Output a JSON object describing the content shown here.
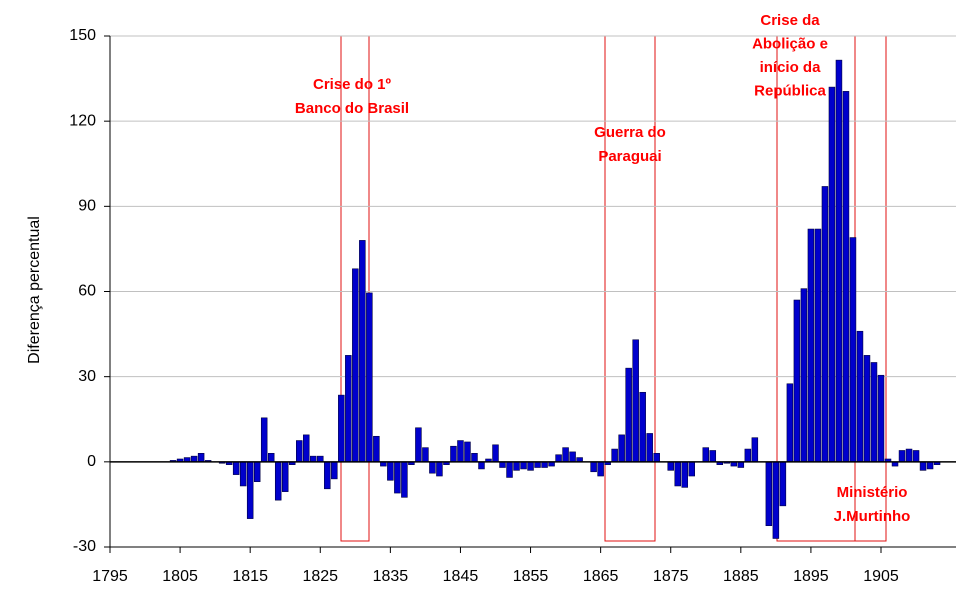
{
  "chart_data": {
    "type": "bar",
    "y_label": "Diferença percentual",
    "x_start": 1804,
    "values": [
      0.5,
      1,
      1.5,
      2,
      3,
      0.5,
      0,
      -0.5,
      -1,
      -4.5,
      -8.5,
      -20,
      -7,
      15.5,
      3,
      -13.5,
      -10.5,
      -1,
      7.5,
      9.5,
      2,
      2,
      -9.5,
      -6,
      23.5,
      37.5,
      68,
      78,
      59.5,
      9,
      -1.5,
      -6.5,
      -11,
      -12.5,
      -1,
      12,
      5,
      -4,
      -5,
      -1,
      5.5,
      7.5,
      7,
      3,
      -2.5,
      1,
      6,
      -2,
      -5.5,
      -3,
      -2.5,
      -3,
      -2,
      -2,
      -1.5,
      2.5,
      5,
      3.5,
      1.5,
      0,
      -3.5,
      -5,
      -1,
      4.5,
      9.5,
      33,
      43,
      24.5,
      10,
      3,
      0,
      -3,
      -8.5,
      -9,
      -5,
      0,
      5,
      4,
      -1,
      -0.5,
      -1.5,
      -2,
      4.5,
      8.5,
      0,
      -22.5,
      -27,
      -15.5,
      27.5,
      57,
      61,
      82,
      82,
      97,
      132,
      141.5,
      130.5,
      79,
      46,
      37.5,
      35,
      30.5,
      1,
      -1.5,
      4,
      4.5,
      4,
      -3,
      -2.5,
      -1
    ],
    "color": "#0000cc",
    "xlim": [
      1795,
      1915.7
    ],
    "xticks": [
      1795,
      1805,
      1815,
      1825,
      1835,
      1845,
      1855,
      1865,
      1875,
      1885,
      1895,
      1905
    ],
    "ylim": [
      -30,
      150
    ],
    "yticks": [
      -30,
      0,
      30,
      60,
      90,
      120,
      150
    ],
    "grid": true,
    "annotations": [
      {
        "lines": [
          "Crise do 1º",
          "Banco do Brasil"
        ]
      },
      {
        "lines": [
          "Guerra do",
          "Paraguai"
        ]
      },
      {
        "lines": [
          "Crise da",
          "Abolição e",
          "início da",
          "República"
        ]
      },
      {
        "lines": [
          "Ministério",
          "J.Murtinho"
        ]
      }
    ]
  }
}
